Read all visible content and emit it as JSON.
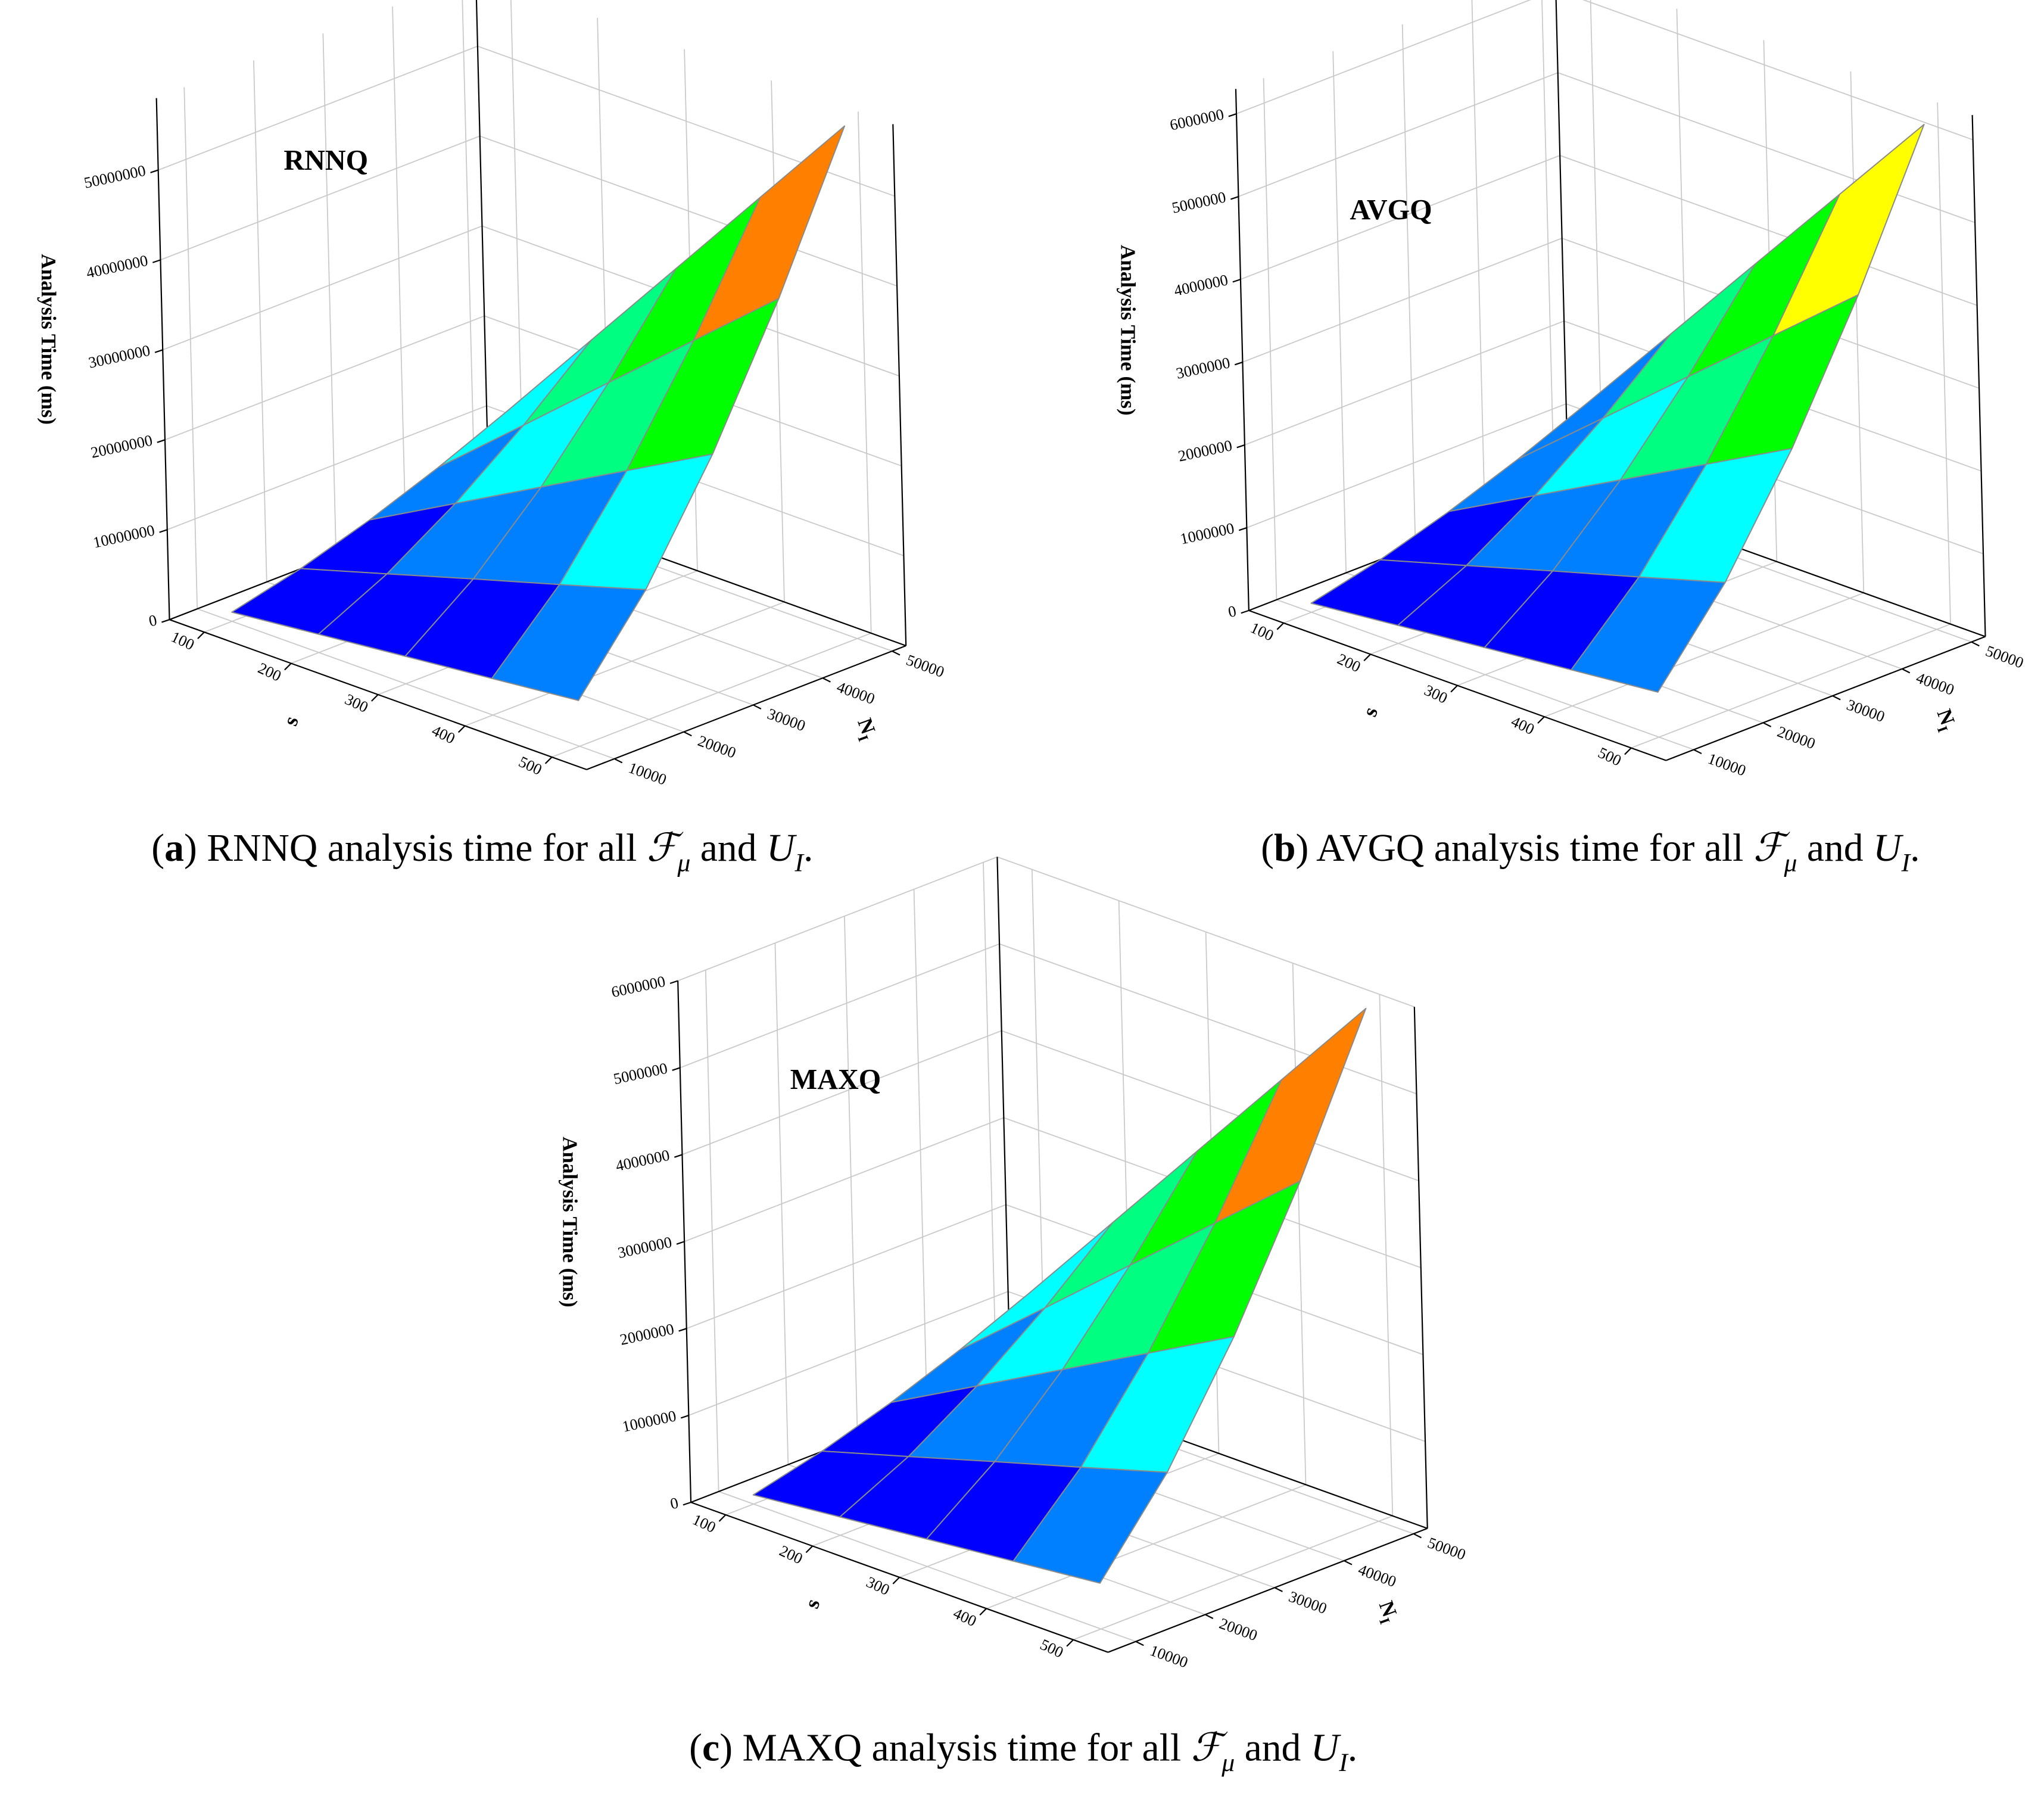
{
  "chart_data": [
    {
      "type": "surface3d",
      "annotation": "RNNQ",
      "zlabel": "Analysis Time (ms)",
      "xlabel": "s",
      "ylabel": "N",
      "ylabel_sub": "I",
      "x": [
        100,
        200,
        300,
        400,
        500
      ],
      "y": [
        10000,
        20000,
        30000,
        40000,
        50000
      ],
      "z": [
        [
          1020000,
          2884000,
          5301000,
          8151000,
          11400000
        ],
        [
          2041000,
          5757000,
          10602000,
          16302000,
          22800000
        ],
        [
          3061000,
          8664000,
          15903000,
          24510000,
          34200000
        ],
        [
          4081000,
          11514000,
          21204000,
          32661000,
          45600000
        ],
        [
          5096000,
          14421000,
          26505000,
          40812000,
          57000000
        ]
      ],
      "xlim": [
        60,
        540
      ],
      "ylim": [
        6000,
        52000
      ],
      "zlim": [
        0,
        58000000
      ],
      "xticks": [
        100,
        200,
        300,
        400,
        500
      ],
      "yticks": [
        10000,
        20000,
        30000,
        40000,
        50000
      ],
      "zticks": [
        0,
        10000000,
        20000000,
        30000000,
        40000000,
        50000000
      ],
      "colors": [
        "#0000ff",
        "#0080ff",
        "#00ffff",
        "#00ff80",
        "#00ff00",
        "#ffff00",
        "#ff8000",
        "#ff0000"
      ],
      "grid": true,
      "caption": [
        [
          "(",
          "n"
        ],
        [
          "a",
          "b"
        ],
        [
          ") RNNQ analysis time for all ",
          "n"
        ],
        [
          "ℱ",
          "i"
        ],
        [
          "μ",
          "sub"
        ],
        [
          " and ",
          "n"
        ],
        [
          "U",
          "i"
        ],
        [
          "I",
          "sub"
        ],
        [
          ".",
          "n"
        ]
      ]
    },
    {
      "type": "surface3d",
      "annotation": "AVGQ",
      "zlabel": "Analysis Time (ms)",
      "xlabel": "s",
      "ylabel": "N",
      "ylabel_sub": "I",
      "x": [
        100,
        200,
        300,
        400,
        500
      ],
      "y": [
        10000,
        20000,
        30000,
        40000,
        50000
      ],
      "z": [
        [
          109000,
          309000,
          567000,
          872000,
          1220000
        ],
        [
          218000,
          616000,
          1135000,
          1745000,
          2440000
        ],
        [
          328000,
          927000,
          1702000,
          2623000,
          3660000
        ],
        [
          437000,
          1232000,
          2269000,
          3495000,
          4880000
        ],
        [
          545000,
          1543000,
          2837000,
          4368000,
          6100000
        ]
      ],
      "xlim": [
        60,
        540
      ],
      "ylim": [
        6000,
        52000
      ],
      "zlim": [
        0,
        6300000
      ],
      "xticks": [
        100,
        200,
        300,
        400,
        500
      ],
      "yticks": [
        10000,
        20000,
        30000,
        40000,
        50000
      ],
      "zticks": [
        0,
        1000000,
        2000000,
        3000000,
        4000000,
        5000000,
        6000000
      ],
      "colors": [
        "#0000ff",
        "#0080ff",
        "#00ffff",
        "#00ff80",
        "#00ff00",
        "#ffff00",
        "#ff8000",
        "#ff0000"
      ],
      "grid": true,
      "caption": [
        [
          "(",
          "n"
        ],
        [
          "b",
          "b"
        ],
        [
          ") AVGQ analysis time for all ",
          "n"
        ],
        [
          "ℱ",
          "i"
        ],
        [
          "μ",
          "sub"
        ],
        [
          " and ",
          "n"
        ],
        [
          "U",
          "i"
        ],
        [
          "I",
          "sub"
        ],
        [
          ".",
          "n"
        ]
      ]
    },
    {
      "type": "surface3d",
      "annotation": "MAXQ",
      "zlabel": "Analysis Time (ms)",
      "xlabel": "s",
      "ylabel": "N",
      "ylabel_sub": "I",
      "x": [
        100,
        200,
        300,
        400,
        500
      ],
      "y": [
        10000,
        20000,
        30000,
        40000,
        50000
      ],
      "z": [
        [
          106000,
          299000,
          549000,
          844000,
          1180000
        ],
        [
          211000,
          596000,
          1097000,
          1687000,
          2360000
        ],
        [
          317000,
          897000,
          1646000,
          2537000,
          3540000
        ],
        [
          422000,
          1192000,
          2195000,
          3381000,
          4720000
        ],
        [
          527000,
          1493000,
          2744000,
          4224000,
          5900000
        ]
      ],
      "xlim": [
        60,
        540
      ],
      "ylim": [
        6000,
        52000
      ],
      "zlim": [
        0,
        6000000
      ],
      "xticks": [
        100,
        200,
        300,
        400,
        500
      ],
      "yticks": [
        10000,
        20000,
        30000,
        40000,
        50000
      ],
      "zticks": [
        0,
        1000000,
        2000000,
        3000000,
        4000000,
        5000000,
        6000000
      ],
      "colors": [
        "#0000ff",
        "#0080ff",
        "#00ffff",
        "#00ff80",
        "#00ff00",
        "#ffff00",
        "#ff8000",
        "#ff0000"
      ],
      "grid": true,
      "caption": [
        [
          "(",
          "n"
        ],
        [
          "c",
          "b"
        ],
        [
          ") MAXQ analysis time for all ",
          "n"
        ],
        [
          "ℱ",
          "i"
        ],
        [
          "μ",
          "sub"
        ],
        [
          " and ",
          "n"
        ],
        [
          "U",
          "i"
        ],
        [
          "I",
          "sub"
        ],
        [
          ".",
          "n"
        ]
      ]
    }
  ]
}
